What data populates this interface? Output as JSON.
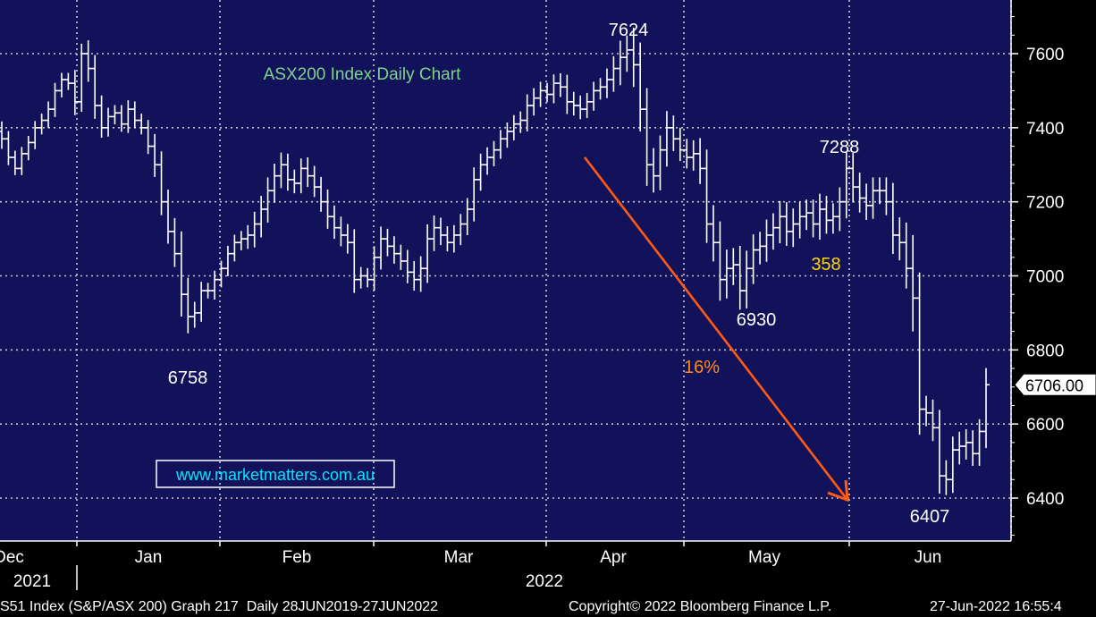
{
  "chart_data": {
    "type": "bar",
    "subtype": "ohlc",
    "title": "ASX200 Index Daily Chart",
    "watermark": "www.marketmatters.com.au",
    "ylim": [
      6300,
      7700
    ],
    "y_ticks": [
      6400,
      6600,
      6800,
      7000,
      7200,
      7400,
      7600
    ],
    "y_tick_labels": [
      "6400",
      "6600",
      "6800",
      "7000",
      "7200",
      "7400",
      "7600"
    ],
    "month_labels": [
      "Dec",
      "Jan",
      "Feb",
      "Mar",
      "Apr",
      "May",
      "Jun"
    ],
    "year_labels": [
      "2021",
      "2022"
    ],
    "last_price_label": "6706.00",
    "last_price": 6706,
    "annotations": [
      {
        "text": "7624",
        "value": 7624,
        "color": "#ffffff"
      },
      {
        "text": "7288",
        "value": 7288,
        "color": "#ffffff"
      },
      {
        "text": "6758",
        "value": 6758,
        "color": "#ffffff"
      },
      {
        "text": "6930",
        "value": 6930,
        "color": "#ffffff"
      },
      {
        "text": "6407",
        "value": 6407,
        "color": "#ffffff"
      },
      {
        "text": "358",
        "color": "#ffd700"
      },
      {
        "text": "16%",
        "color": "#ff8c1a"
      }
    ],
    "arrow": {
      "from_value": 7320,
      "to_value": 6395,
      "color": "#ff5a14"
    },
    "closes": [
      7370,
      7320,
      7290,
      7330,
      7360,
      7400,
      7420,
      7450,
      7500,
      7530,
      7520,
      7470,
      7600,
      7560,
      7460,
      7400,
      7430,
      7440,
      7410,
      7450,
      7420,
      7400,
      7350,
      7300,
      7200,
      7120,
      7060,
      6950,
      6890,
      6900,
      6960,
      6960,
      6990,
      7020,
      7060,
      7090,
      7100,
      7110,
      7140,
      7180,
      7230,
      7270,
      7300,
      7260,
      7250,
      7290,
      7270,
      7240,
      7200,
      7160,
      7130,
      7110,
      7090,
      6990,
      7000,
      6990,
      7050,
      7100,
      7080,
      7060,
      7040,
      7010,
      6990,
      7020,
      7100,
      7130,
      7110,
      7090,
      7110,
      7140,
      7180,
      7260,
      7300,
      7320,
      7340,
      7370,
      7390,
      7410,
      7420,
      7460,
      7480,
      7500,
      7490,
      7520,
      7510,
      7470,
      7460,
      7450,
      7470,
      7500,
      7510,
      7530,
      7560,
      7590,
      7610,
      7570,
      7450,
      7300,
      7270,
      7340,
      7400,
      7370,
      7340,
      7320,
      7330,
      7290,
      7140,
      7090,
      6990,
      7020,
      7030,
      6960,
      7020,
      7070,
      7080,
      7110,
      7130,
      7160,
      7120,
      7140,
      7160,
      7170,
      7140,
      7180,
      7150,
      7160,
      7200,
      7290,
      7240,
      7210,
      7190,
      7230,
      7230,
      7200,
      7110,
      7090,
      7020,
      6940,
      6640,
      6630,
      6590,
      6460,
      6450,
      6530,
      6540,
      6550,
      6520,
      6580,
      6706
    ],
    "ranges": [
      90,
      70,
      60,
      60,
      60,
      60,
      60,
      70,
      70,
      60,
      60,
      120,
      90,
      120,
      120,
      90,
      80,
      70,
      70,
      80,
      70,
      60,
      70,
      110,
      120,
      110,
      120,
      200,
      150,
      100,
      80,
      70,
      80,
      70,
      70,
      70,
      70,
      90,
      110,
      120,
      120,
      110,
      110,
      100,
      90,
      90,
      100,
      90,
      90,
      110,
      100,
      100,
      100,
      120,
      80,
      70,
      100,
      110,
      90,
      90,
      80,
      100,
      100,
      110,
      130,
      110,
      90,
      80,
      90,
      90,
      100,
      110,
      100,
      90,
      80,
      80,
      80,
      80,
      80,
      100,
      90,
      80,
      70,
      80,
      90,
      110,
      90,
      90,
      80,
      80,
      80,
      100,
      110,
      150,
      130,
      200,
      200,
      190,
      150,
      130,
      150,
      110,
      100,
      100,
      120,
      140,
      170,
      170,
      190,
      170,
      150,
      170,
      160,
      140,
      130,
      140,
      130,
      140,
      130,
      140,
      130,
      120,
      120,
      140,
      120,
      120,
      130,
      150,
      140,
      130,
      130,
      120,
      120,
      120,
      170,
      160,
      180,
      300,
      230,
      120,
      120,
      160,
      140,
      120,
      130,
      120,
      110,
      110,
      150
    ]
  }
}
